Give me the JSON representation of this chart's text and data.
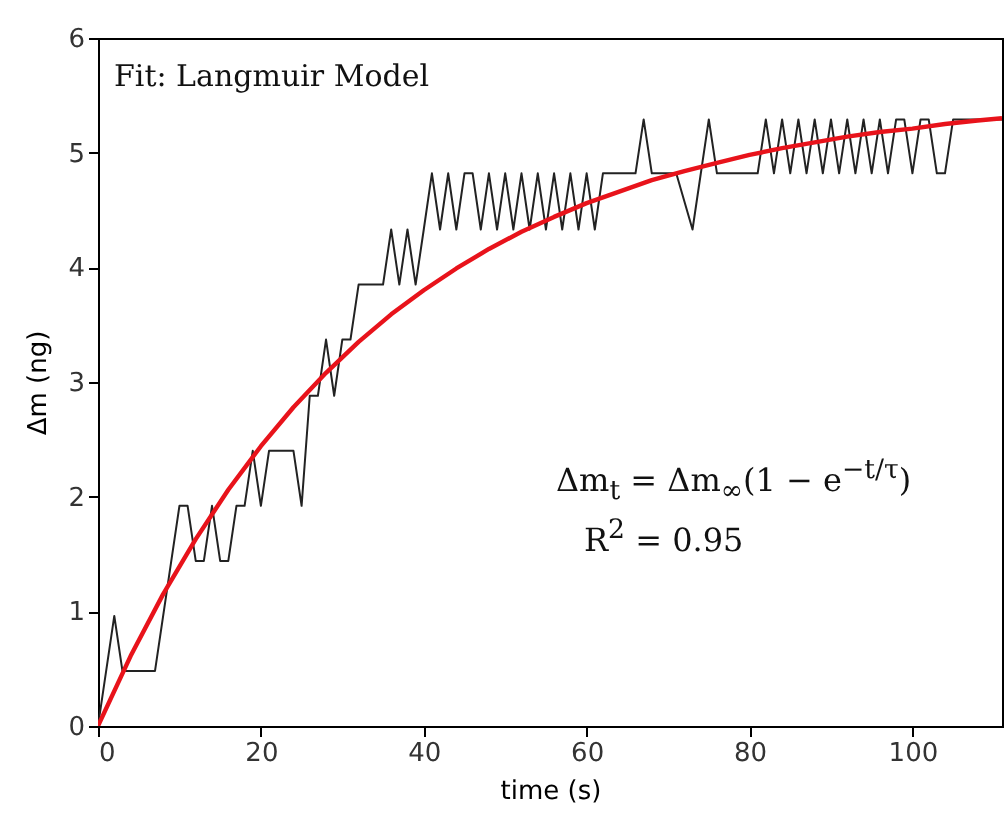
{
  "chart_data": {
    "type": "line",
    "xlabel": "time (s)",
    "ylabel": "Δm (ng)",
    "xlim": [
      0,
      111
    ],
    "xticks": [
      0,
      20,
      40,
      60,
      80,
      100
    ],
    "ylim": [
      0,
      6
    ],
    "yticks": [
      0,
      1,
      2,
      3,
      4,
      5,
      6
    ],
    "annotations": [
      "Fit: Langmuir Model",
      "Δm$_{t}$ = Δm$_{∞}$(1 − e$^{−t/τ}$)",
      "R$^{2}$ = 0.95"
    ],
    "series": [
      {
        "color": "#222222",
        "x": [
          0,
          2,
          3,
          7,
          10,
          11,
          12,
          13,
          14,
          15,
          16,
          17,
          18,
          19,
          20,
          21,
          24,
          25,
          26,
          27,
          28,
          29,
          30,
          31,
          32,
          35,
          36,
          37,
          38,
          39,
          40,
          41,
          42,
          43,
          44,
          45,
          46,
          47,
          48,
          49,
          50,
          51,
          52,
          53,
          54,
          55,
          56,
          57,
          58,
          59,
          60,
          61,
          62,
          66,
          67,
          68,
          71,
          73,
          75,
          76,
          81,
          82,
          83,
          84,
          85,
          86,
          87,
          88,
          89,
          90,
          91,
          92,
          93,
          94,
          95,
          96,
          97,
          98,
          99,
          100,
          101,
          102,
          103,
          104,
          105,
          111
        ],
        "values": [
          0,
          0.96,
          0.48,
          0.48,
          1.92,
          1.92,
          1.44,
          1.44,
          1.92,
          1.44,
          1.44,
          1.92,
          1.92,
          2.4,
          1.92,
          2.4,
          2.4,
          1.92,
          2.88,
          2.88,
          3.37,
          2.88,
          3.37,
          3.37,
          3.85,
          3.85,
          4.33,
          3.85,
          4.33,
          3.85,
          4.33,
          4.82,
          4.33,
          4.82,
          4.33,
          4.82,
          4.82,
          4.33,
          4.82,
          4.33,
          4.82,
          4.33,
          4.82,
          4.33,
          4.82,
          4.33,
          4.82,
          4.33,
          4.82,
          4.33,
          4.82,
          4.33,
          4.82,
          4.82,
          5.29,
          4.82,
          4.82,
          4.33,
          5.29,
          4.82,
          4.82,
          5.29,
          4.82,
          5.29,
          4.82,
          5.29,
          4.82,
          5.29,
          4.82,
          5.29,
          4.82,
          5.29,
          4.82,
          5.29,
          4.82,
          5.29,
          4.82,
          5.29,
          5.29,
          4.82,
          5.29,
          5.29,
          4.82,
          4.82,
          5.29,
          5.29
        ]
      },
      {
        "color": "#e8131b",
        "x": [
          0,
          4,
          8,
          12,
          16,
          20,
          24,
          28,
          32,
          36,
          40,
          44,
          48,
          52,
          56,
          60,
          64,
          68,
          72,
          76,
          80,
          84,
          88,
          92,
          96,
          100,
          104,
          108,
          111
        ],
        "values": [
          0,
          0.61,
          1.15,
          1.63,
          2.06,
          2.44,
          2.78,
          3.08,
          3.35,
          3.59,
          3.8,
          3.99,
          4.16,
          4.31,
          4.44,
          4.56,
          4.66,
          4.76,
          4.84,
          4.91,
          4.98,
          5.04,
          5.09,
          5.14,
          5.18,
          5.21,
          5.25,
          5.28,
          5.3
        ]
      }
    ]
  }
}
